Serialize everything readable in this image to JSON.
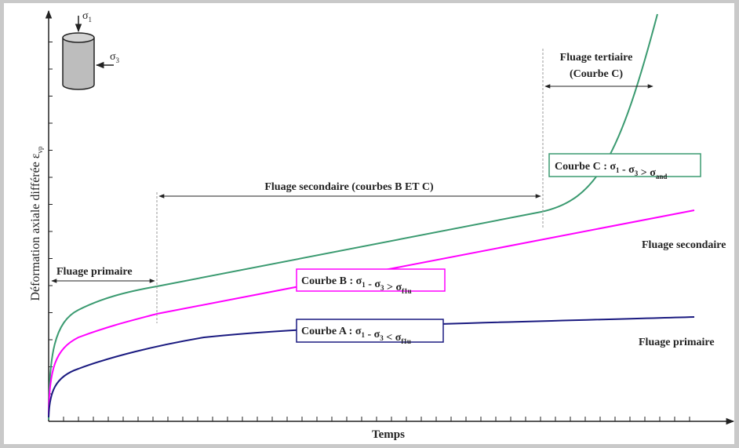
{
  "icon": {
    "sigma1": [
      {
        "text": "σ"
      },
      {
        "sub": "1"
      }
    ],
    "sigma3": [
      {
        "text": "σ"
      },
      {
        "sub": "3"
      }
    ]
  },
  "axes": {
    "y_label": [
      {
        "text": "Déformation axiale différée ε"
      },
      {
        "sub": "vp"
      }
    ],
    "x_label": [
      {
        "text": "Temps"
      }
    ]
  },
  "phases": {
    "tertiary": [
      {
        "text": "Fluage tertiaire"
      }
    ],
    "tertiary_note": [
      {
        "text": "(Courbe C)"
      }
    ],
    "secondary": [
      {
        "text": "Fluage secondaire (courbes B ET C)"
      }
    ],
    "primary": [
      {
        "text": "Fluage primaire"
      }
    ]
  },
  "curves": {
    "c": [
      {
        "text": "Courbe C : σ"
      },
      {
        "sub": "1"
      },
      {
        "text": " - σ"
      },
      {
        "sub": "3"
      },
      {
        "text": " > σ"
      },
      {
        "sub": "and"
      }
    ],
    "b": [
      {
        "text": "Courbe B : σ"
      },
      {
        "sub": "1"
      },
      {
        "text": " - σ"
      },
      {
        "sub": "3"
      },
      {
        "text": " > σ"
      },
      {
        "sub": "f1u"
      }
    ],
    "a": [
      {
        "text": "Courbe A : σ"
      },
      {
        "sub": "1"
      },
      {
        "text": " - σ"
      },
      {
        "sub": "3"
      },
      {
        "text": " < σ"
      },
      {
        "sub": "f1u"
      }
    ]
  },
  "side_labels": {
    "secondary": [
      {
        "text": "Fluage secondaire"
      }
    ],
    "primary": [
      {
        "text": "Fluage primaire"
      }
    ]
  }
}
